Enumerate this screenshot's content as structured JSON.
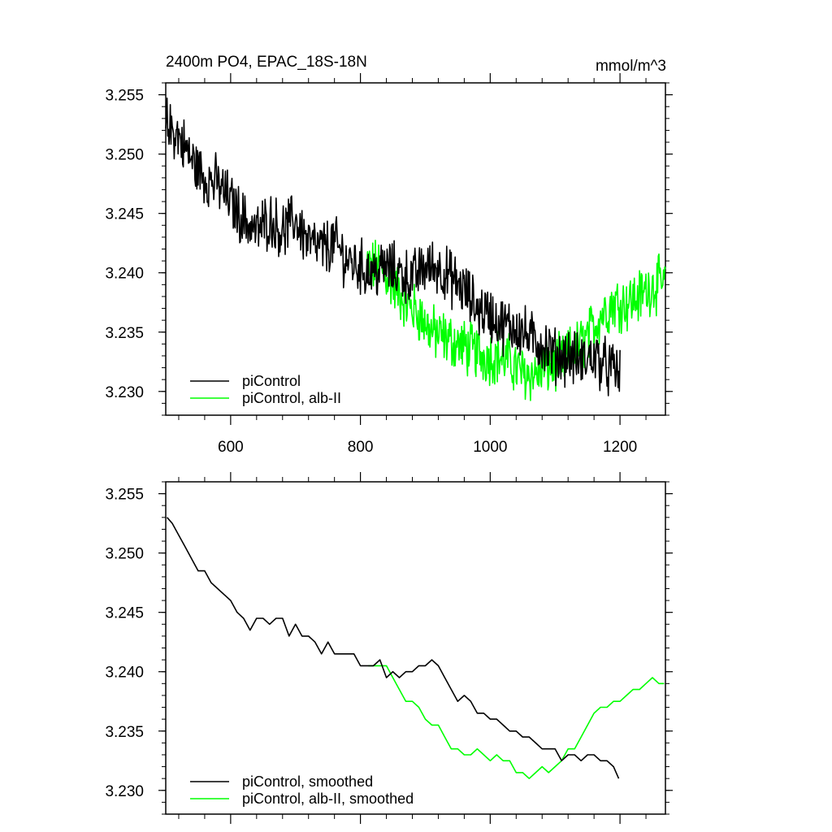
{
  "chart_data": [
    {
      "type": "line",
      "title": "2400m PO4, EPAC_18S-18N",
      "units": "mmol/m^3",
      "xlim": [
        500,
        1270
      ],
      "ylim": [
        3.228,
        3.256
      ],
      "xticks": [
        600,
        800,
        1000,
        1200
      ],
      "xtick_labels": [
        "600",
        "800",
        "1000",
        "1200"
      ],
      "yticks": [
        3.23,
        3.235,
        3.24,
        3.245,
        3.25,
        3.255
      ],
      "ytick_labels": [
        "3.230",
        "3.235",
        "3.240",
        "3.245",
        "3.250",
        "3.255"
      ],
      "legend": "bottom-left",
      "series": [
        {
          "name": "piControl",
          "color": "#000000",
          "x": [
            500,
            520,
            540,
            560,
            580,
            600,
            620,
            640,
            660,
            680,
            700,
            720,
            740,
            760,
            780,
            800,
            820,
            840,
            860,
            880,
            900,
            920,
            940,
            960,
            980,
            1000,
            1020,
            1040,
            1060,
            1080,
            1100,
            1120,
            1140,
            1160,
            1180,
            1200
          ],
          "y": [
            3.2525,
            3.2515,
            3.2495,
            3.248,
            3.2475,
            3.246,
            3.2445,
            3.2435,
            3.2445,
            3.2435,
            3.2445,
            3.2425,
            3.242,
            3.2425,
            3.241,
            3.2405,
            3.24,
            3.2405,
            3.24,
            3.2395,
            3.2405,
            3.2405,
            3.2395,
            3.2385,
            3.237,
            3.2365,
            3.2355,
            3.2355,
            3.2345,
            3.234,
            3.233,
            3.233,
            3.2325,
            3.233,
            3.232,
            3.2315
          ],
          "noise": 0.0025
        },
        {
          "name": "piControl, alb-II",
          "color": "#00ff00",
          "x": [
            810,
            830,
            850,
            870,
            890,
            910,
            930,
            950,
            970,
            990,
            1010,
            1030,
            1050,
            1070,
            1090,
            1110,
            1130,
            1150,
            1170,
            1190,
            1210,
            1230,
            1250,
            1270
          ],
          "y": [
            3.2405,
            3.2405,
            3.239,
            3.2375,
            3.2365,
            3.235,
            3.2345,
            3.234,
            3.2335,
            3.233,
            3.233,
            3.2325,
            3.2315,
            3.2315,
            3.232,
            3.2325,
            3.2335,
            3.2345,
            3.2365,
            3.2375,
            3.2375,
            3.238,
            3.239,
            3.239
          ],
          "noise": 0.0025
        }
      ]
    },
    {
      "type": "line",
      "xlim": [
        500,
        1270
      ],
      "ylim": [
        3.228,
        3.256
      ],
      "xticks": [
        600,
        800,
        1000,
        1200
      ],
      "yticks": [
        3.23,
        3.235,
        3.24,
        3.245,
        3.25,
        3.255
      ],
      "ytick_labels": [
        "3.230",
        "3.235",
        "3.240",
        "3.245",
        "3.250",
        "3.255"
      ],
      "legend": "bottom-left",
      "series": [
        {
          "name": "piControl, smoothed",
          "color": "#000000",
          "x": [
            502,
            510,
            520,
            530,
            540,
            550,
            560,
            570,
            580,
            590,
            600,
            610,
            620,
            630,
            640,
            650,
            660,
            670,
            680,
            690,
            700,
            710,
            720,
            730,
            740,
            750,
            760,
            770,
            780,
            790,
            800,
            810,
            820,
            830,
            840,
            850,
            860,
            870,
            880,
            890,
            900,
            910,
            920,
            930,
            940,
            950,
            960,
            970,
            980,
            990,
            1000,
            1010,
            1020,
            1030,
            1040,
            1050,
            1060,
            1070,
            1080,
            1090,
            1100,
            1110,
            1120,
            1130,
            1140,
            1150,
            1160,
            1170,
            1180,
            1190,
            1198
          ],
          "y": [
            3.253,
            3.2525,
            3.2515,
            3.2505,
            3.2495,
            3.2485,
            3.2485,
            3.2475,
            3.247,
            3.2465,
            3.246,
            3.245,
            3.2445,
            3.2435,
            3.2445,
            3.2445,
            3.244,
            3.2445,
            3.2445,
            3.243,
            3.244,
            3.243,
            3.243,
            3.2425,
            3.2415,
            3.2425,
            3.2415,
            3.2415,
            3.2415,
            3.2415,
            3.2405,
            3.2405,
            3.2405,
            3.241,
            3.2395,
            3.24,
            3.2395,
            3.24,
            3.24,
            3.2405,
            3.2405,
            3.241,
            3.2405,
            3.2395,
            3.2385,
            3.2375,
            3.238,
            3.2375,
            3.2365,
            3.2365,
            3.236,
            3.236,
            3.2355,
            3.235,
            3.235,
            3.2345,
            3.2345,
            3.234,
            3.2335,
            3.2335,
            3.2335,
            3.2325,
            3.233,
            3.233,
            3.2325,
            3.233,
            3.233,
            3.2325,
            3.2325,
            3.232,
            3.231
          ]
        },
        {
          "name": "piControl, alb-II, smoothed",
          "color": "#00ff00",
          "x": [
            812,
            820,
            830,
            840,
            850,
            860,
            870,
            880,
            890,
            900,
            910,
            920,
            930,
            940,
            950,
            960,
            970,
            980,
            990,
            1000,
            1010,
            1020,
            1030,
            1040,
            1050,
            1060,
            1070,
            1080,
            1090,
            1100,
            1110,
            1120,
            1130,
            1140,
            1150,
            1160,
            1170,
            1180,
            1190,
            1200,
            1210,
            1220,
            1230,
            1240,
            1250,
            1260,
            1268
          ],
          "y": [
            3.2405,
            3.2405,
            3.2405,
            3.2405,
            3.2395,
            3.2385,
            3.2375,
            3.2375,
            3.237,
            3.236,
            3.2355,
            3.2355,
            3.2345,
            3.2335,
            3.2335,
            3.233,
            3.233,
            3.2335,
            3.233,
            3.2325,
            3.233,
            3.2325,
            3.2325,
            3.2315,
            3.2315,
            3.231,
            3.2315,
            3.232,
            3.2315,
            3.232,
            3.2325,
            3.2335,
            3.2335,
            3.2345,
            3.2355,
            3.2365,
            3.237,
            3.237,
            3.2375,
            3.2375,
            3.238,
            3.2385,
            3.2385,
            3.239,
            3.2395,
            3.239,
            3.239
          ]
        }
      ]
    }
  ]
}
